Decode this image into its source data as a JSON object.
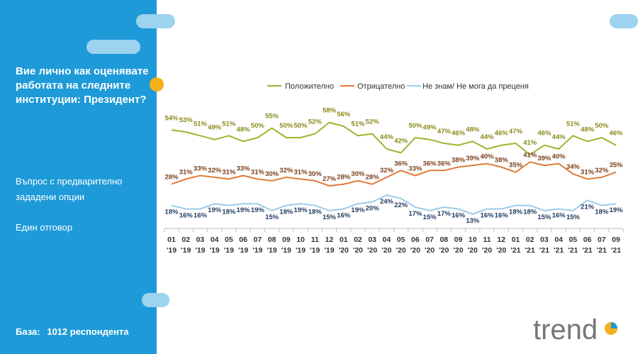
{
  "sidebar": {
    "question": "Вие лично как оценявате работата на следните институции: Президент?",
    "note1": "Въпрос с предварително зададени опции",
    "note2": "Един отговор",
    "base_label": "База:",
    "base_value": "1012 респондента"
  },
  "logo": {
    "text": "trend"
  },
  "colors": {
    "sidebar": "#1e9ad8",
    "positive": "#9cb52f",
    "negative": "#e07b39",
    "unknown": "#9ccbe8",
    "accent_dot": "#f3b21a"
  },
  "chart_data": {
    "type": "line",
    "title": "",
    "legend_position": "top",
    "categories": [
      "01 '19",
      "02 '19",
      "03 '19",
      "04 '19",
      "05 '19",
      "06 '19",
      "07 '19",
      "08 '19",
      "09 '19",
      "10 '19",
      "11 '19",
      "12 '19",
      "01 '20",
      "02 '20",
      "03 '20",
      "04 '20",
      "05 '20",
      "06 '20",
      "07 '20",
      "08 '20",
      "09 '20",
      "10 '20",
      "11 '20",
      "12 '20",
      "01 '21",
      "02 '21",
      "03 '21",
      "04 '21",
      "05 '21",
      "06 '21",
      "07 '21",
      "09 '21"
    ],
    "series": [
      {
        "name": "Положително",
        "color": "#9cb52f",
        "values": [
          54,
          53,
          51,
          49,
          51,
          48,
          50,
          55,
          50,
          50,
          52,
          58,
          56,
          51,
          52,
          44,
          42,
          50,
          49,
          47,
          46,
          48,
          44,
          46,
          47,
          41,
          46,
          44,
          51,
          48,
          50,
          46
        ]
      },
      {
        "name": "Отрицателно",
        "color": "#e07b39",
        "values": [
          28,
          31,
          33,
          32,
          31,
          33,
          31,
          30,
          32,
          31,
          30,
          27,
          28,
          30,
          28,
          32,
          36,
          33,
          36,
          36,
          38,
          39,
          40,
          38,
          35,
          41,
          39,
          40,
          34,
          31,
          32,
          35
        ]
      },
      {
        "name": "Не знам/ Не мога да преценя",
        "color": "#9ccbe8",
        "values": [
          18,
          16,
          16,
          19,
          18,
          19,
          19,
          15,
          18,
          19,
          18,
          15,
          16,
          19,
          20,
          24,
          22,
          17,
          15,
          17,
          16,
          13,
          16,
          16,
          18,
          18,
          15,
          16,
          15,
          21,
          18,
          19
        ]
      }
    ],
    "ylim": [
      0,
      80
    ],
    "grid": false
  }
}
